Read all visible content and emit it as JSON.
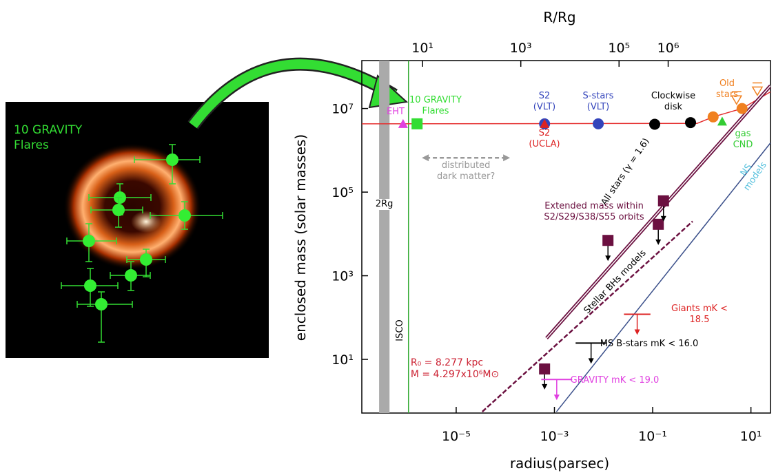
{
  "chart_data": {
    "type": "scatter",
    "x_label": "radius(parsec)",
    "y_label": "enclosed mass (solar masses)",
    "x2_label": "R/Rg",
    "xscale": "log",
    "yscale": "log",
    "xlim": [
      1.2e-07,
      25
    ],
    "ylim": [
      0.52,
      140000000.0
    ],
    "x2lim": [
      0.58,
      121000000.0
    ],
    "xticks": [
      {
        "value": 1e-05,
        "label": "10⁻⁵"
      },
      {
        "value": 0.001,
        "label": "10⁻³"
      },
      {
        "value": 0.1,
        "label": "10⁻¹"
      },
      {
        "value": 10,
        "label": "10¹"
      }
    ],
    "yticks": [
      {
        "value": 10,
        "label": "10¹"
      },
      {
        "value": 1000,
        "label": "10³"
      },
      {
        "value": 100000,
        "label": "10⁵"
      },
      {
        "value": 10000000,
        "label": "10⁷"
      }
    ],
    "x2ticks": [
      {
        "value": 10,
        "label": "10¹"
      },
      {
        "value": 1000,
        "label": "10³"
      },
      {
        "value": 100000,
        "label": "10⁵"
      },
      {
        "value": 1000000,
        "label": "10⁶"
      }
    ],
    "series": [
      {
        "name": "EHT",
        "color": "#e040e0",
        "marker": "triangle",
        "x": [
          8.3e-07
        ],
        "y": [
          4300000.0
        ]
      },
      {
        "name": "10 GRAVITY\nFlares",
        "color": "#33dd33",
        "marker": "square",
        "x": [
          1.6e-06
        ],
        "y": [
          4300000.0
        ]
      },
      {
        "name": "S2\n(VLT)",
        "color": "#3344bb",
        "marker": "circle",
        "x": [
          0.00063
        ],
        "y": [
          4300000.0
        ]
      },
      {
        "name": "S2\n(UCLA)",
        "color": "#dd2222",
        "marker": "triangle",
        "x": [
          0.00063
        ],
        "y": [
          4300000.0
        ]
      },
      {
        "name": "S-stars\n(VLT)",
        "color": "#3344bb",
        "marker": "circle",
        "x": [
          0.0078
        ],
        "y": [
          4300000.0
        ]
      },
      {
        "name": "Clockwise\ndisk",
        "color": "#000000",
        "marker": "circle",
        "x": [
          0.11,
          0.59
        ],
        "y": [
          4200000.0,
          4600000.0
        ]
      },
      {
        "name": "Old\nstars",
        "color": "#f08020",
        "marker": "circle",
        "x": [
          1.7,
          6.6
        ],
        "y": [
          6300000.0,
          10000000.0
        ]
      },
      {
        "name": "gas\nCND",
        "color": "#33cc33",
        "marker": "triangle",
        "x": [
          2.6
        ],
        "y": [
          4900000.0
        ]
      }
    ],
    "old_star_limits": {
      "color": "#f08020",
      "x": [
        5.1,
        13.5
      ],
      "y": [
        16000000.0,
        26000000.0
      ]
    },
    "lines": [
      {
        "color": "#e53030",
        "style": "solid",
        "x": [
          1.2e-07,
          0.8,
          1.7,
          6.6,
          25
        ],
        "y": [
          4297000.0,
          4400000.0,
          6300000.0,
          10000000.0,
          25000000.0
        ]
      },
      {
        "name": "All stars (γ = 1.6)",
        "color": "#6b1040",
        "style": "double",
        "x": [
          0.00069,
          25
        ],
        "y": [
          32,
          35000000.0
        ]
      },
      {
        "name": "Stellar BHs models",
        "color": "#6b1040",
        "style": "dashed",
        "x": [
          3.4e-05,
          0.65
        ],
        "y": [
          0.56,
          20000
        ]
      },
      {
        "name": "NS models",
        "color": "#3a4f8a",
        "label_color": "#55c0dd",
        "style": "solid",
        "x": [
          0.0011,
          25
        ],
        "y": [
          0.56,
          1500000.0
        ]
      }
    ],
    "mass_limits": {
      "name": "Extended mass within\nS2/S29/S38/S55 orbits",
      "color": "#6b1040",
      "x": [
        0.00063,
        0.0123,
        0.13,
        0.166
      ],
      "y": [
        5.9,
        7000,
        17000,
        62000
      ]
    },
    "flux_limits": [
      {
        "name": "Giants mK < 18.5",
        "color": "#dd2222",
        "x": [
          0.026,
          0.09
        ],
        "y": 120
      },
      {
        "name": "MS B-stars mK < 16.0",
        "color": "#000000",
        "x": [
          0.0027,
          0.0115
        ],
        "y": 24.5
      },
      {
        "name": "GRAVITY mK < 19.0",
        "color": "#e040e0",
        "x": [
          0.00054,
          0.0023
        ],
        "y": 3.3
      }
    ],
    "band": {
      "name": "2Rg",
      "color": "#aaaaaa",
      "x": [
        2.7e-07,
        4.4e-07
      ]
    },
    "isco": {
      "name": "ISCO",
      "color": "#33aa33",
      "x": 1.07e-06
    },
    "dark_matter": {
      "name": "distributed\ndark matter?",
      "color": "#999999",
      "x": [
        2e-06,
        0.000125
      ],
      "y": 660000
    },
    "mass_params": "R₀ = 8.277 kpc\nM = 4.297x10⁶M⊙"
  },
  "inset": {
    "title": "10 GRAVITY\nFlares"
  }
}
